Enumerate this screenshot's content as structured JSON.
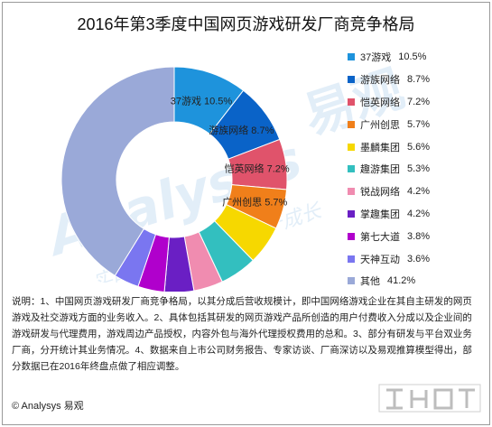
{
  "title": "2016年第3季度中国网页游戏研发厂商竞争格局",
  "chart_data": {
    "type": "pie",
    "title": "2016年第3季度中国网页游戏研发厂商竞争格局",
    "categories": [
      "37游戏",
      "游族网络",
      "恺英网络",
      "广州创思",
      "墨麟集团",
      "趣游集团",
      "锐战网络",
      "掌趣集团",
      "第七大道",
      "天神互动",
      "其他"
    ],
    "values": [
      10.5,
      8.7,
      7.2,
      5.7,
      5.6,
      5.3,
      4.2,
      4.2,
      3.8,
      3.6,
      41.2
    ],
    "value_labels": [
      "10.5%",
      "8.7%",
      "7.2%",
      "5.7%",
      "5.6%",
      "5.3%",
      "4.2%",
      "4.2%",
      "3.8%",
      "3.6%",
      "41.2%"
    ],
    "colors": [
      "#1e93dc",
      "#0a63c8",
      "#e0536b",
      "#f07f1a",
      "#f6d800",
      "#33bfbf",
      "#f08cb0",
      "#6a1fc4",
      "#b000cc",
      "#7a76f0",
      "#9aa9d8"
    ],
    "donut": true,
    "legend_position": "right"
  },
  "slice_labels": [
    {
      "name": "37游戏",
      "value": "10.5%"
    },
    {
      "name": "游族网络",
      "value": "8.7%"
    },
    {
      "name": "恺英网络",
      "value": "7.2%"
    },
    {
      "name": "广州创思",
      "value": "5.7%"
    }
  ],
  "note": "说明：1、中国网页游戏研发厂商竞争格局，以其分成后营收规模计，即中国网络游戏企业在其自主研发的网页游戏及社交游戏方面的业务收入。2、具体包括其研发的网页游戏产品所创造的用户付费收入分成以及企业间的游戏研发与代理费用，游戏周边产品授权，内容外包与海外代理授权费用的总和。3、部分有研发与平台双业务厂商，分开统计其业务情况。4、数据来自上市公司财务报告、专家访谈、厂商深访以及易观推算模型得出，部分数据已在2016年终盘点做了相应调整。",
  "footer": "© Analysys 易观",
  "watermark": {
    "brand_en": "Analysys",
    "brand_cn": "易观",
    "slogan": "实时分析驱动用户资产成长"
  }
}
